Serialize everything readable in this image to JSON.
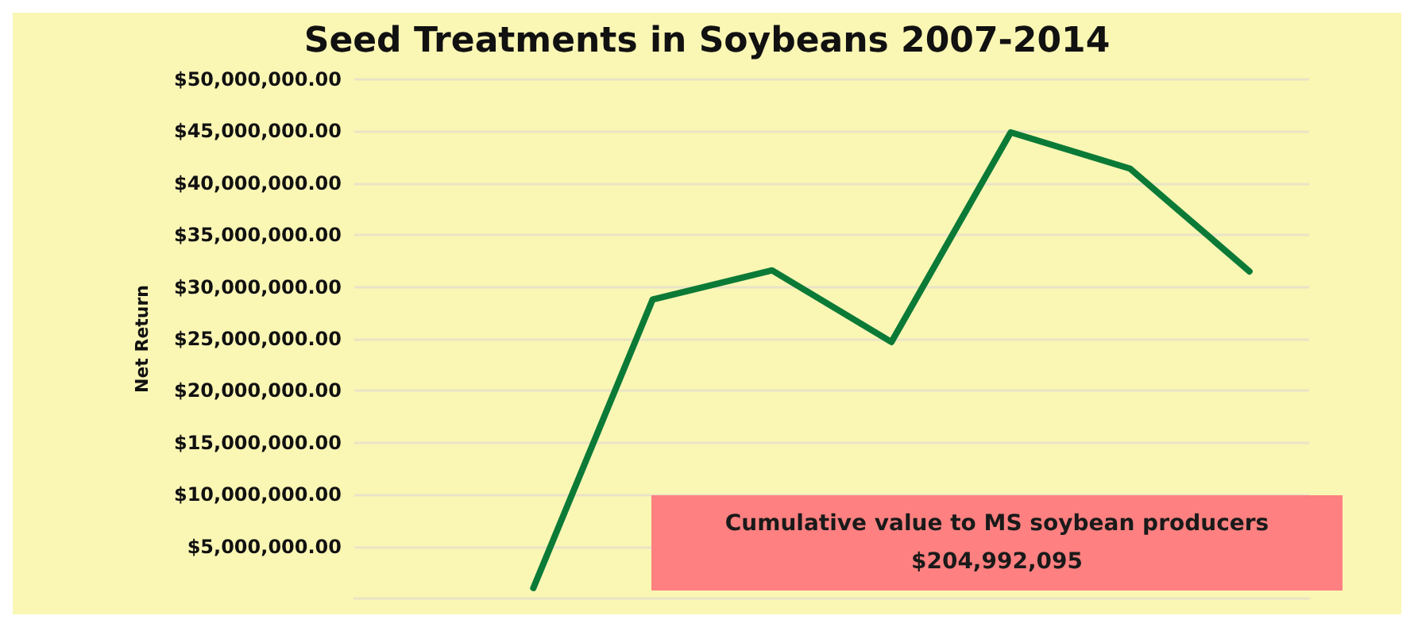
{
  "chart_data": {
    "type": "line",
    "title": "Seed Treatments in Soybeans 2007-2014",
    "ylabel": "Net Return",
    "categories": [
      null,
      null,
      null,
      null,
      null,
      null,
      null,
      null
    ],
    "series": [
      {
        "color": "#0b7a37",
        "values": [
          null,
          1000000,
          28800000,
          31600000,
          24700000,
          44900000,
          41400000,
          31500000
        ]
      }
    ],
    "ylim": [
      0,
      50000000
    ],
    "yticks": [
      {
        "value": 5000000,
        "label": "$5,000,000.00"
      },
      {
        "value": 10000000,
        "label": "$10,000,000.00"
      },
      {
        "value": 15000000,
        "label": "$15,000,000.00"
      },
      {
        "value": 20000000,
        "label": "$20,000,000.00"
      },
      {
        "value": 25000000,
        "label": "$25,000,000.00"
      },
      {
        "value": 30000000,
        "label": "$30,000,000.00"
      },
      {
        "value": 35000000,
        "label": "$35,000,000.00"
      },
      {
        "value": 40000000,
        "label": "$40,000,000.00"
      },
      {
        "value": 45000000,
        "label": "$45,000,000.00"
      },
      {
        "value": 50000000,
        "label": "$50,000,000.00"
      }
    ],
    "grid": "y",
    "marker": "none",
    "line_style": "solid",
    "tick_labels": "y",
    "annotations": [
      "Cumulative value to MS soybean producers\n$204,992,095"
    ]
  }
}
